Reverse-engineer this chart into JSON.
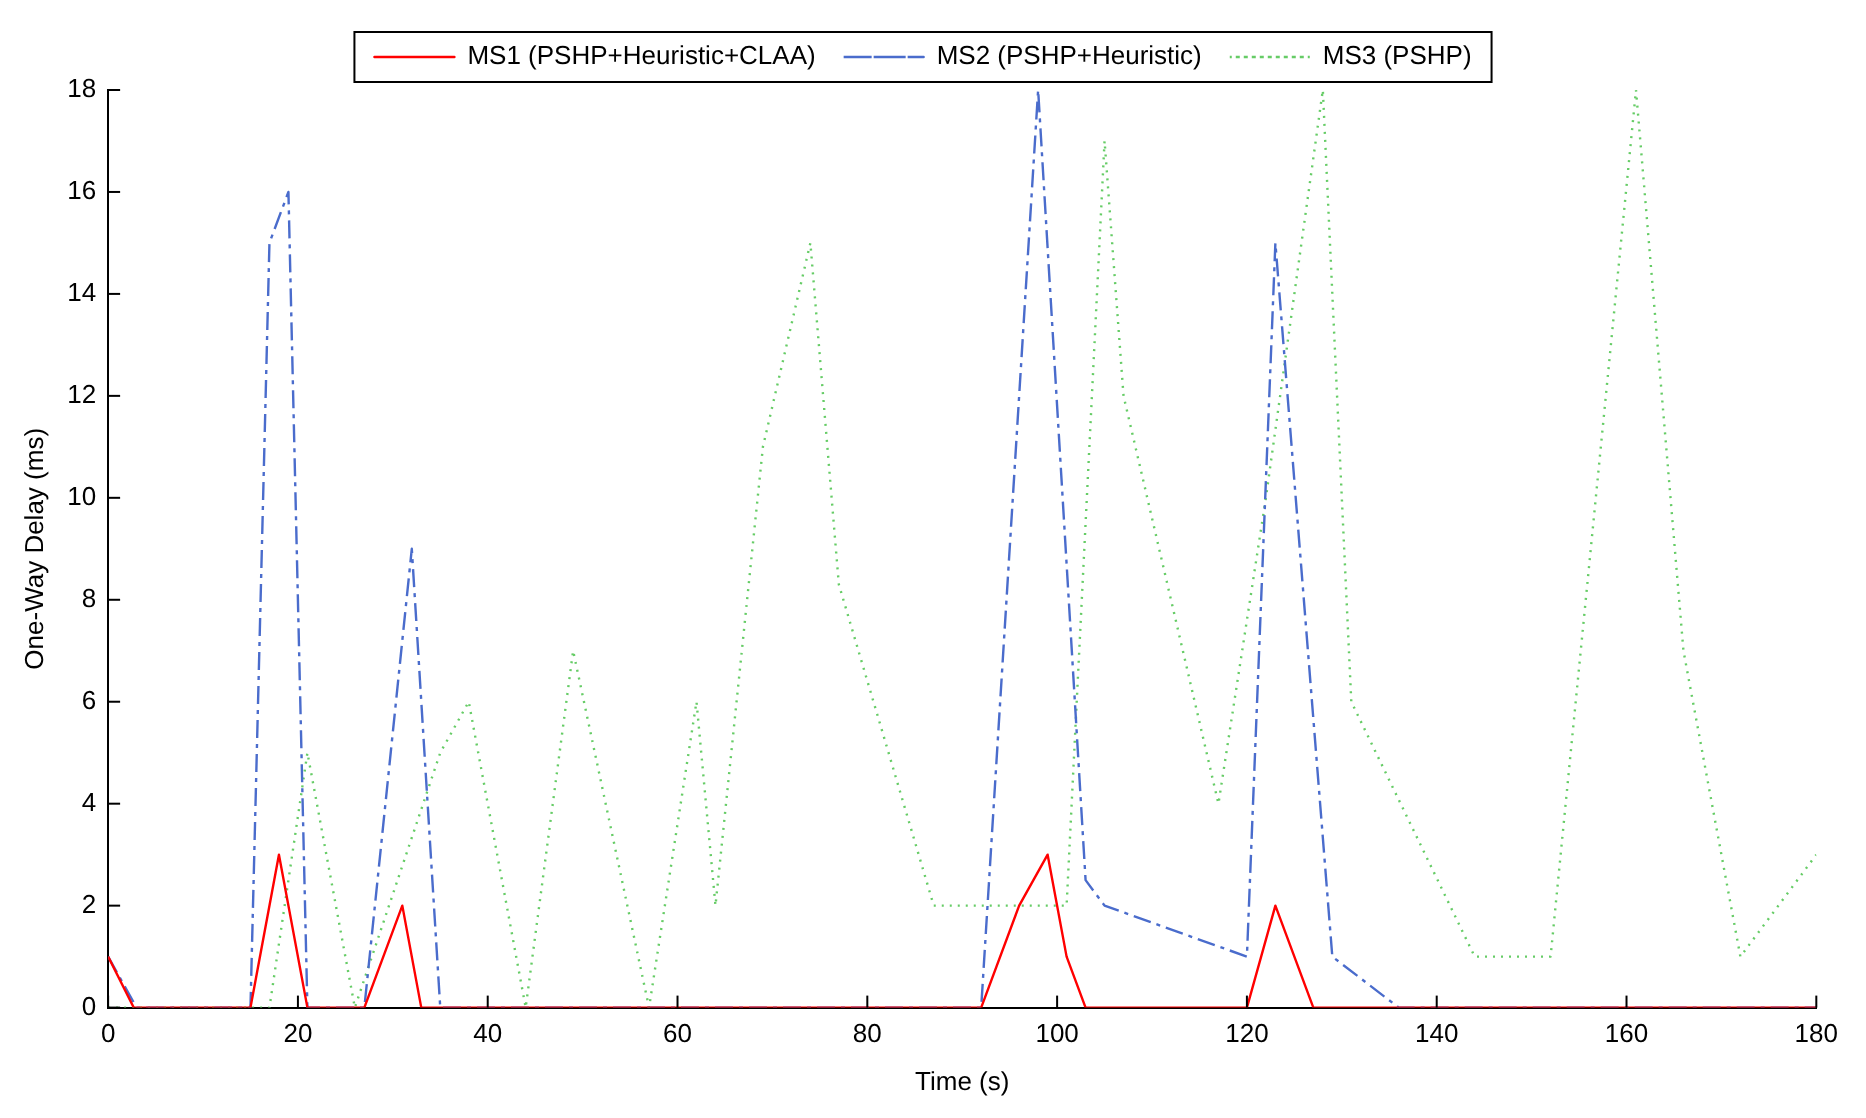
{
  "chart_data": {
    "type": "line",
    "xlabel": "Time (s)",
    "ylabel": "One-Way Delay (ms)",
    "xlim": [
      0,
      180
    ],
    "xticks": [
      0,
      20,
      40,
      60,
      80,
      100,
      120,
      140,
      160,
      180
    ],
    "ylim": [
      0,
      18
    ],
    "yticks": [
      0,
      2,
      4,
      6,
      8,
      10,
      12,
      14,
      16,
      18
    ],
    "grid": false,
    "legend": "top",
    "marker": "none",
    "series": [
      {
        "name": "MS1 (PSHP+Heuristic+CLAA)",
        "color": "#ff0000",
        "line_style": "solid",
        "x": [
          0,
          2.7,
          15,
          18,
          21,
          27,
          31,
          33,
          92,
          96,
          99,
          101,
          103,
          120,
          123,
          127,
          180
        ],
        "values": [
          1,
          0,
          0,
          3,
          0,
          0,
          2,
          0,
          0,
          2,
          3,
          1,
          0,
          0,
          2,
          0,
          0
        ]
      },
      {
        "name": "MS2 (PSHP+Heuristic)",
        "color": "#4a6ccc",
        "line_style": "dashed",
        "x": [
          0,
          3,
          15,
          17,
          19,
          21,
          27,
          32,
          35,
          92,
          98,
          103,
          105,
          120,
          123,
          129,
          136,
          180
        ],
        "values": [
          1,
          0,
          0,
          15,
          16,
          0,
          0,
          9,
          0,
          0,
          18,
          2.5,
          2,
          1,
          15,
          1,
          0,
          0
        ]
      },
      {
        "name": "MS3 (PSHP)",
        "color": "#66cc66",
        "line_style": "dotted",
        "x": [
          0,
          17,
          21,
          26,
          35,
          38,
          44,
          49,
          57,
          62,
          64,
          69,
          74,
          77,
          87,
          101,
          105,
          107,
          117,
          122,
          128,
          131,
          144,
          152,
          161,
          166,
          172,
          180
        ],
        "values": [
          0,
          0,
          5,
          0,
          5,
          6,
          0,
          7,
          0,
          6,
          2,
          11,
          15,
          8.3,
          2,
          2,
          17,
          12,
          4,
          10,
          18,
          6,
          1,
          1,
          18,
          7,
          1,
          3
        ]
      }
    ]
  }
}
